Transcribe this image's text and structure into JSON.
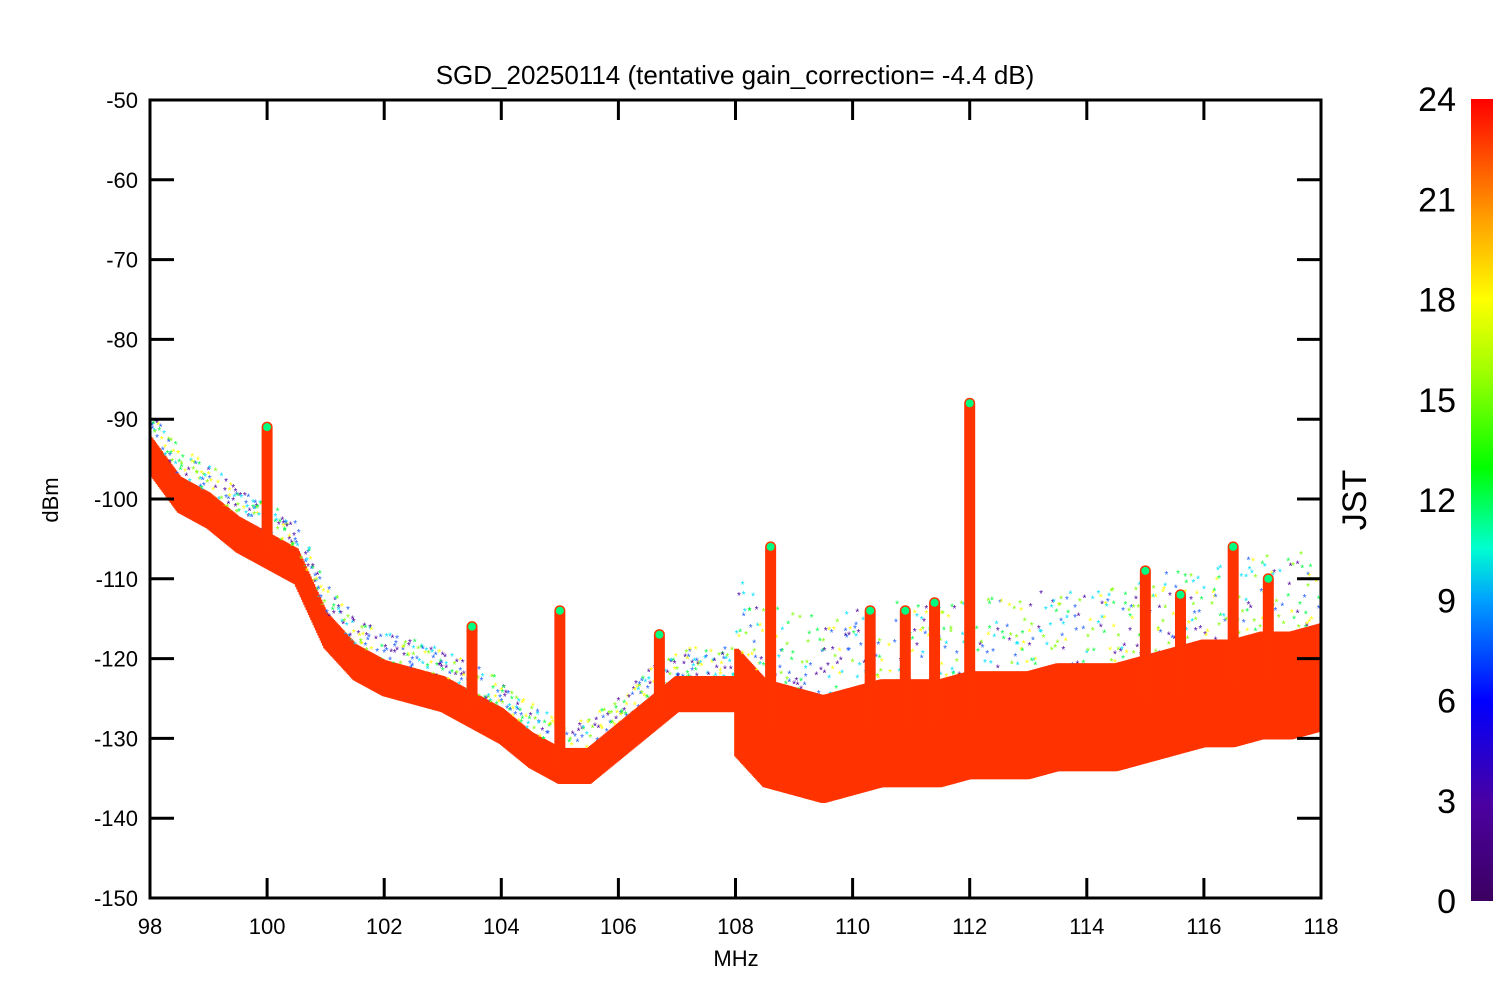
{
  "chart_data": {
    "type": "scatter",
    "title": "SGD_20250114 (tentative gain_correction= -4.4 dB)",
    "xlabel": "MHz",
    "ylabel": "dBm",
    "xlim": [
      98,
      118
    ],
    "ylim": [
      -150,
      -50
    ],
    "x_ticks": [
      "98",
      "100",
      "102",
      "104",
      "106",
      "108",
      "110",
      "112",
      "114",
      "116",
      "118"
    ],
    "y_ticks": [
      "-50",
      "-60",
      "-70",
      "-80",
      "-90",
      "-100",
      "-110",
      "-120",
      "-130",
      "-140",
      "-150"
    ],
    "colorbar": {
      "label": "JST",
      "range": [
        0,
        24
      ],
      "ticks": [
        "0",
        "3",
        "6",
        "9",
        "12",
        "15",
        "18",
        "21",
        "24"
      ],
      "colormap": "rainbow (purple to red)"
    },
    "series": [
      {
        "values_description_points": [
          {
            "x": 98.0,
            "y": -94
          },
          {
            "x": 98.5,
            "y": -99
          },
          {
            "x": 99.0,
            "y": -101
          },
          {
            "x": 99.5,
            "y": -104
          },
          {
            "x": 100.0,
            "y": -106
          },
          {
            "x": 100.5,
            "y": -108
          },
          {
            "x": 101.0,
            "y": -116
          },
          {
            "x": 101.5,
            "y": -120
          },
          {
            "x": 102.0,
            "y": -122
          },
          {
            "x": 102.5,
            "y": -123
          },
          {
            "x": 103.0,
            "y": -124
          },
          {
            "x": 103.5,
            "y": -126
          },
          {
            "x": 104.0,
            "y": -128
          },
          {
            "x": 104.5,
            "y": -131
          },
          {
            "x": 105.0,
            "y": -133
          },
          {
            "x": 105.5,
            "y": -133
          },
          {
            "x": 106.0,
            "y": -130
          },
          {
            "x": 106.5,
            "y": -127
          },
          {
            "x": 107.0,
            "y": -124
          },
          {
            "x": 107.5,
            "y": -124
          },
          {
            "x": 108.0,
            "y": -124
          },
          {
            "x": 108.5,
            "y": -128
          },
          {
            "x": 109.0,
            "y": -129
          },
          {
            "x": 109.5,
            "y": -130
          },
          {
            "x": 110.0,
            "y": -129
          },
          {
            "x": 110.5,
            "y": -128
          },
          {
            "x": 111.0,
            "y": -128
          },
          {
            "x": 111.5,
            "y": -128
          },
          {
            "x": 112.0,
            "y": -127
          },
          {
            "x": 112.5,
            "y": -127
          },
          {
            "x": 113.0,
            "y": -127
          },
          {
            "x": 113.5,
            "y": -126
          },
          {
            "x": 114.0,
            "y": -126
          },
          {
            "x": 114.5,
            "y": -126
          },
          {
            "x": 115.0,
            "y": -125
          },
          {
            "x": 115.5,
            "y": -124
          },
          {
            "x": 116.0,
            "y": -123
          },
          {
            "x": 116.5,
            "y": -123
          },
          {
            "x": 117.0,
            "y": -122
          },
          {
            "x": 117.5,
            "y": -122
          },
          {
            "x": 118.0,
            "y": -121
          }
        ],
        "peaks": [
          {
            "x": 100.0,
            "y": -91
          },
          {
            "x": 103.5,
            "y": -116
          },
          {
            "x": 105.0,
            "y": -114
          },
          {
            "x": 106.7,
            "y": -117
          },
          {
            "x": 108.6,
            "y": -106
          },
          {
            "x": 110.3,
            "y": -114
          },
          {
            "x": 110.9,
            "y": -114
          },
          {
            "x": 111.4,
            "y": -113
          },
          {
            "x": 112.0,
            "y": -88
          },
          {
            "x": 115.0,
            "y": -109
          },
          {
            "x": 115.6,
            "y": -112
          },
          {
            "x": 116.5,
            "y": -106
          },
          {
            "x": 117.1,
            "y": -110
          }
        ]
      }
    ]
  }
}
